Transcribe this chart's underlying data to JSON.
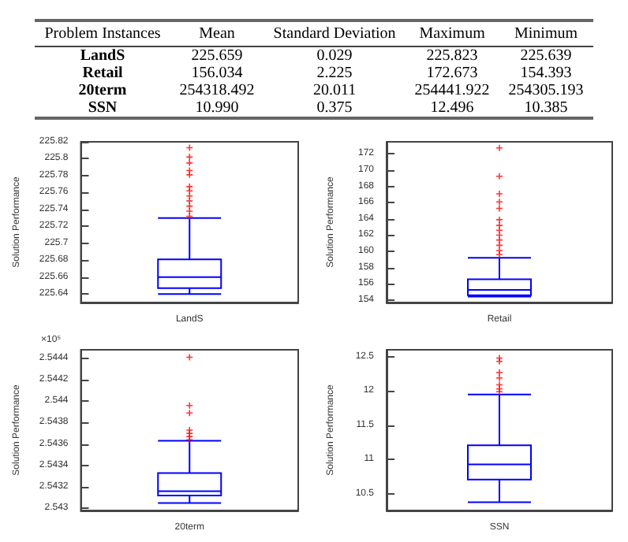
{
  "chart_data": [
    {
      "type": "other",
      "categories": [
        "Problem Instances",
        "Mean",
        "Standard Deviation",
        "Maximum",
        "Minimum"
      ],
      "y_categories": [
        "LandS",
        "Retail",
        "20term",
        "SSN"
      ],
      "cell_labels": [
        [
          "225.659",
          "0.029",
          "225.823",
          "225.639"
        ],
        [
          "156.034",
          "2.225",
          "172.673",
          "154.393"
        ],
        [
          "254318.492",
          "20.011",
          "254441.922",
          "254305.193"
        ],
        [
          "10.990",
          "0.375",
          "12.496",
          "10.385"
        ]
      ]
    },
    {
      "type": "box",
      "categories": [
        "LandS"
      ],
      "ylabel": "Solution Performance",
      "color": "#0000ff",
      "marker": "cross",
      "grid": false,
      "ylim": [
        225.63,
        225.82
      ],
      "yticks": [
        225.64,
        225.66,
        225.68,
        225.7,
        225.72,
        225.74,
        225.76,
        225.78,
        225.8,
        225.82
      ],
      "boxes": [
        {
          "low": 225.64,
          "q1": 225.647,
          "median": 225.66,
          "q3": 225.681,
          "high": 225.73,
          "outliers": [
            225.813,
            225.802,
            225.795,
            225.786,
            225.781,
            225.767,
            225.762,
            225.756,
            225.75,
            225.744,
            225.738,
            225.732
          ]
        }
      ]
    },
    {
      "type": "box",
      "categories": [
        "Retail"
      ],
      "ylabel": "Solution Performance",
      "color": "#0000ff",
      "marker": "cross",
      "grid": false,
      "ylim": [
        153.7,
        173.5
      ],
      "yticks": [
        154,
        156,
        158,
        160,
        162,
        164,
        166,
        168,
        170,
        172
      ],
      "boxes": [
        {
          "low": 154.44,
          "q1": 154.6,
          "median": 155.25,
          "q3": 156.56,
          "high": 159.2,
          "outliers": [
            172.75,
            169.25,
            167.1,
            166.1,
            165.3,
            163.9,
            163.2,
            162.6,
            162.0,
            161.4,
            160.75,
            160.1,
            159.6
          ]
        }
      ]
    },
    {
      "type": "box",
      "categories": [
        "20term"
      ],
      "ylabel": "Solution Performance",
      "color": "#0000ff",
      "marker": "cross",
      "grid": false,
      "annotations": [
        "×10⁵"
      ],
      "ylim": [
        2.54298,
        2.54448
      ],
      "yticks": [
        2.543,
        2.5432,
        2.5434,
        2.5436,
        2.5438,
        2.544,
        2.5442,
        2.5444
      ],
      "boxes": [
        {
          "low": 2.54305,
          "q1": 2.54312,
          "median": 2.54316,
          "q3": 2.54333,
          "high": 2.54363,
          "outliers": [
            2.54441,
            2.54396,
            2.54389,
            2.54373,
            2.5437,
            2.54367,
            2.54364
          ]
        }
      ]
    },
    {
      "type": "box",
      "categories": [
        "SSN"
      ],
      "ylabel": "Solution Performance",
      "color": "#0000ff",
      "marker": "cross",
      "grid": false,
      "ylim": [
        10.26,
        12.6
      ],
      "yticks": [
        10.5,
        11,
        11.5,
        12,
        12.5
      ],
      "boxes": [
        {
          "low": 10.38,
          "q1": 10.71,
          "median": 10.93,
          "q3": 11.21,
          "high": 11.95,
          "outliers": [
            12.48,
            12.43,
            12.27,
            12.19,
            12.09,
            12.03,
            11.99
          ]
        }
      ]
    }
  ]
}
